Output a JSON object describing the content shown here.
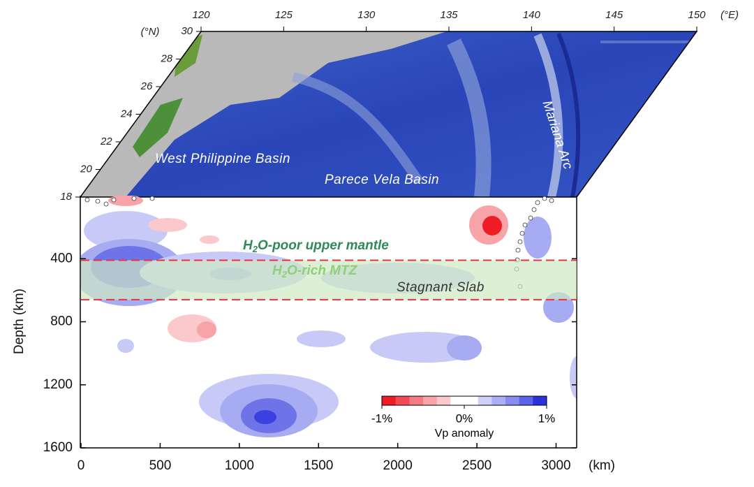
{
  "chart_data": {
    "type": "section",
    "map": {
      "lonlim": [
        120,
        150
      ],
      "lonticks": [
        120,
        125,
        130,
        135,
        140,
        145,
        150
      ],
      "lon_unit": "(°E)",
      "latlim": [
        18,
        30
      ],
      "latticks": [
        18,
        20,
        22,
        24,
        26,
        28,
        30
      ],
      "lat_unit": "(°N)",
      "labels": [
        "West Philippine Basin",
        "Parece Vela Basin",
        "Mariana Arc"
      ]
    },
    "xlim": [
      0,
      3130
    ],
    "xticks": [
      0,
      500,
      1000,
      1500,
      2000,
      2500,
      3000
    ],
    "xlabel": "(km)",
    "ylim": [
      0,
      1600
    ],
    "yticks": [
      400,
      800,
      1200,
      1600
    ],
    "ylabel": "Depth (km)",
    "discontinuities": [
      410,
      660
    ],
    "annotations": {
      "upper": [
        "H",
        "2",
        "O-poor upper mantle"
      ],
      "mtz": [
        "H",
        "2",
        "O-rich MTZ"
      ],
      "slab": "Stagnant Slab"
    },
    "colorbar": {
      "clim": [
        -1,
        1
      ],
      "ticks": [
        {
          "value": -1,
          "label": "-1%"
        },
        {
          "value": 0,
          "label": "0%"
        },
        {
          "value": 1,
          "label": "1%"
        }
      ],
      "label": "Vp anomaly",
      "colors": [
        "#ee1c25",
        "#f24a55",
        "#f57a82",
        "#f8a3a8",
        "#fbc8cb",
        "#ffffff",
        "#ffffff",
        "#cfd1f8",
        "#abaff3",
        "#878cee",
        "#5c62e6",
        "#2a32de"
      ]
    }
  }
}
